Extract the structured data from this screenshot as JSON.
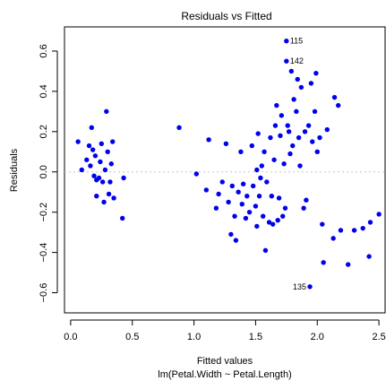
{
  "chart_data": {
    "type": "scatter",
    "title": "Residuals vs Fitted",
    "xlabel": "Fitted values",
    "subtitle": "lm(Petal.Width ~ Petal.Length)",
    "ylabel": "Residuals",
    "xlim": [
      -0.05,
      2.55
    ],
    "ylim": [
      -0.7,
      0.72
    ],
    "x_ticks": [
      {
        "value": 0.0,
        "label": "0.0"
      },
      {
        "value": 0.5,
        "label": "0.5"
      },
      {
        "value": 1.0,
        "label": "1.0"
      },
      {
        "value": 1.5,
        "label": "1.5"
      },
      {
        "value": 2.0,
        "label": "2.0"
      },
      {
        "value": 2.5,
        "label": "2.5"
      }
    ],
    "y_ticks": [
      {
        "value": -0.6,
        "label": "−0.6"
      },
      {
        "value": -0.4,
        "label": "−0.4"
      },
      {
        "value": -0.2,
        "label": "−0.2"
      },
      {
        "value": 0.0,
        "label": "0.0"
      },
      {
        "value": 0.2,
        "label": "0.2"
      },
      {
        "value": 0.4,
        "label": "0.4"
      },
      {
        "value": 0.6,
        "label": "0.6"
      }
    ],
    "reference_line": {
      "y": 0.0,
      "style": "dotted",
      "color": "#c8c8c8"
    },
    "point_color": "#0000ee",
    "points": [
      [
        0.06,
        0.15
      ],
      [
        0.09,
        0.01
      ],
      [
        0.13,
        0.06
      ],
      [
        0.15,
        0.13
      ],
      [
        0.16,
        0.03
      ],
      [
        0.17,
        0.22
      ],
      [
        0.18,
        0.11
      ],
      [
        0.19,
        -0.02
      ],
      [
        0.2,
        0.08
      ],
      [
        0.21,
        -0.04
      ],
      [
        0.21,
        -0.12
      ],
      [
        0.23,
        -0.03
      ],
      [
        0.24,
        0.05
      ],
      [
        0.25,
        0.14
      ],
      [
        0.26,
        -0.05
      ],
      [
        0.27,
        -0.15
      ],
      [
        0.28,
        0.01
      ],
      [
        0.29,
        0.3
      ],
      [
        0.3,
        0.1
      ],
      [
        0.31,
        -0.11
      ],
      [
        0.32,
        -0.05
      ],
      [
        0.33,
        0.04
      ],
      [
        0.34,
        0.15
      ],
      [
        0.35,
        -0.13
      ],
      [
        0.42,
        -0.23
      ],
      [
        0.43,
        -0.03
      ],
      [
        0.88,
        0.22
      ],
      [
        1.02,
        -0.01
      ],
      [
        1.1,
        -0.09
      ],
      [
        1.12,
        0.16
      ],
      [
        1.18,
        -0.18
      ],
      [
        1.2,
        -0.11
      ],
      [
        1.23,
        -0.05
      ],
      [
        1.26,
        0.14
      ],
      [
        1.28,
        -0.15
      ],
      [
        1.3,
        -0.31
      ],
      [
        1.31,
        -0.07
      ],
      [
        1.33,
        -0.22
      ],
      [
        1.34,
        -0.34
      ],
      [
        1.36,
        -0.1
      ],
      [
        1.38,
        0.1
      ],
      [
        1.39,
        -0.16
      ],
      [
        1.4,
        -0.06
      ],
      [
        1.42,
        -0.23
      ],
      [
        1.43,
        -0.12
      ],
      [
        1.45,
        -0.2
      ],
      [
        1.47,
        0.13
      ],
      [
        1.48,
        -0.07
      ],
      [
        1.5,
        -0.17
      ],
      [
        1.51,
        0.01
      ],
      [
        1.51,
        -0.27
      ],
      [
        1.52,
        0.19
      ],
      [
        1.53,
        -0.12
      ],
      [
        1.54,
        -0.03
      ],
      [
        1.55,
        0.03
      ],
      [
        1.56,
        -0.22
      ],
      [
        1.57,
        0.1
      ],
      [
        1.58,
        -0.39
      ],
      [
        1.59,
        -0.05
      ],
      [
        1.61,
        -0.25
      ],
      [
        1.62,
        0.17
      ],
      [
        1.63,
        -0.12
      ],
      [
        1.64,
        -0.26
      ],
      [
        1.65,
        0.06
      ],
      [
        1.66,
        0.23
      ],
      [
        1.67,
        0.33
      ],
      [
        1.68,
        -0.24
      ],
      [
        1.69,
        -0.13
      ],
      [
        1.7,
        0.18
      ],
      [
        1.71,
        0.28
      ],
      [
        1.72,
        -0.22
      ],
      [
        1.73,
        0.04
      ],
      [
        1.74,
        -0.18
      ],
      [
        1.75,
        0.65
      ],
      [
        1.75,
        0.55
      ],
      [
        1.76,
        0.23
      ],
      [
        1.77,
        0.2
      ],
      [
        1.78,
        0.09
      ],
      [
        1.79,
        0.5
      ],
      [
        1.8,
        0.13
      ],
      [
        1.81,
        0.36
      ],
      [
        1.83,
        0.3
      ],
      [
        1.84,
        0.46
      ],
      [
        1.85,
        0.17
      ],
      [
        1.86,
        0.03
      ],
      [
        1.87,
        0.42
      ],
      [
        1.89,
        -0.18
      ],
      [
        1.9,
        0.2
      ],
      [
        1.91,
        -0.14
      ],
      [
        1.93,
        0.23
      ],
      [
        1.94,
        -0.57
      ],
      [
        1.95,
        0.44
      ],
      [
        1.96,
        0.15
      ],
      [
        1.98,
        0.3
      ],
      [
        1.99,
        0.49
      ],
      [
        2.0,
        0.1
      ],
      [
        2.02,
        0.17
      ],
      [
        2.04,
        -0.26
      ],
      [
        2.05,
        -0.45
      ],
      [
        2.08,
        0.21
      ],
      [
        2.13,
        -0.33
      ],
      [
        2.14,
        0.37
      ],
      [
        2.17,
        0.33
      ],
      [
        2.19,
        -0.29
      ],
      [
        2.25,
        -0.46
      ],
      [
        2.3,
        -0.29
      ],
      [
        2.37,
        -0.28
      ],
      [
        2.42,
        -0.42
      ],
      [
        2.43,
        -0.25
      ],
      [
        2.5,
        -0.21
      ]
    ],
    "labeled_points": [
      {
        "label": "115",
        "x": 1.75,
        "y": 0.65
      },
      {
        "label": "142",
        "x": 1.75,
        "y": 0.55
      },
      {
        "label": "135",
        "x": 1.94,
        "y": -0.57
      }
    ]
  }
}
